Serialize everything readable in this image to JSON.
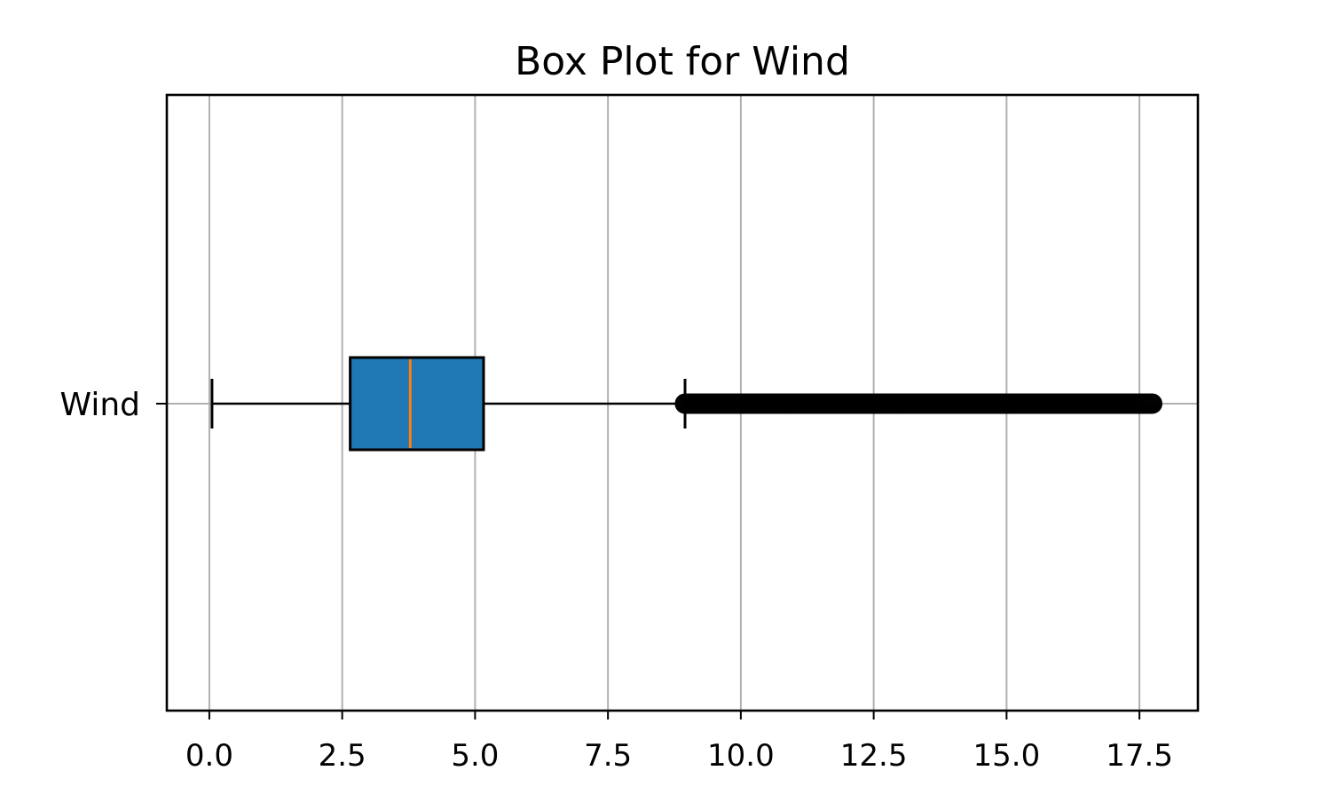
{
  "chart_data": {
    "type": "boxplot",
    "orientation": "horizontal",
    "title": "Box Plot for Wind",
    "xlabel": "",
    "ylabel": "",
    "xlim": [
      -0.8,
      18.6
    ],
    "x_ticks": [
      0.0,
      2.5,
      5.0,
      7.5,
      10.0,
      12.5,
      15.0,
      17.5
    ],
    "x_tick_labels": [
      "0.0",
      "2.5",
      "5.0",
      "7.5",
      "10.0",
      "12.5",
      "15.0",
      "17.5"
    ],
    "grid": "x-major",
    "categories": [
      "Wind"
    ],
    "series": [
      {
        "whisker_low": 0.05,
        "q1": 2.65,
        "median": 3.78,
        "q3": 5.16,
        "whisker_high": 8.95,
        "outliers_min": 8.95,
        "outliers_max": 17.75
      }
    ],
    "colors": {
      "box_fill": "#1f77b4",
      "median_line": "#ff7f0e",
      "grid": "#b0b0b0",
      "axis": "#000000"
    }
  }
}
